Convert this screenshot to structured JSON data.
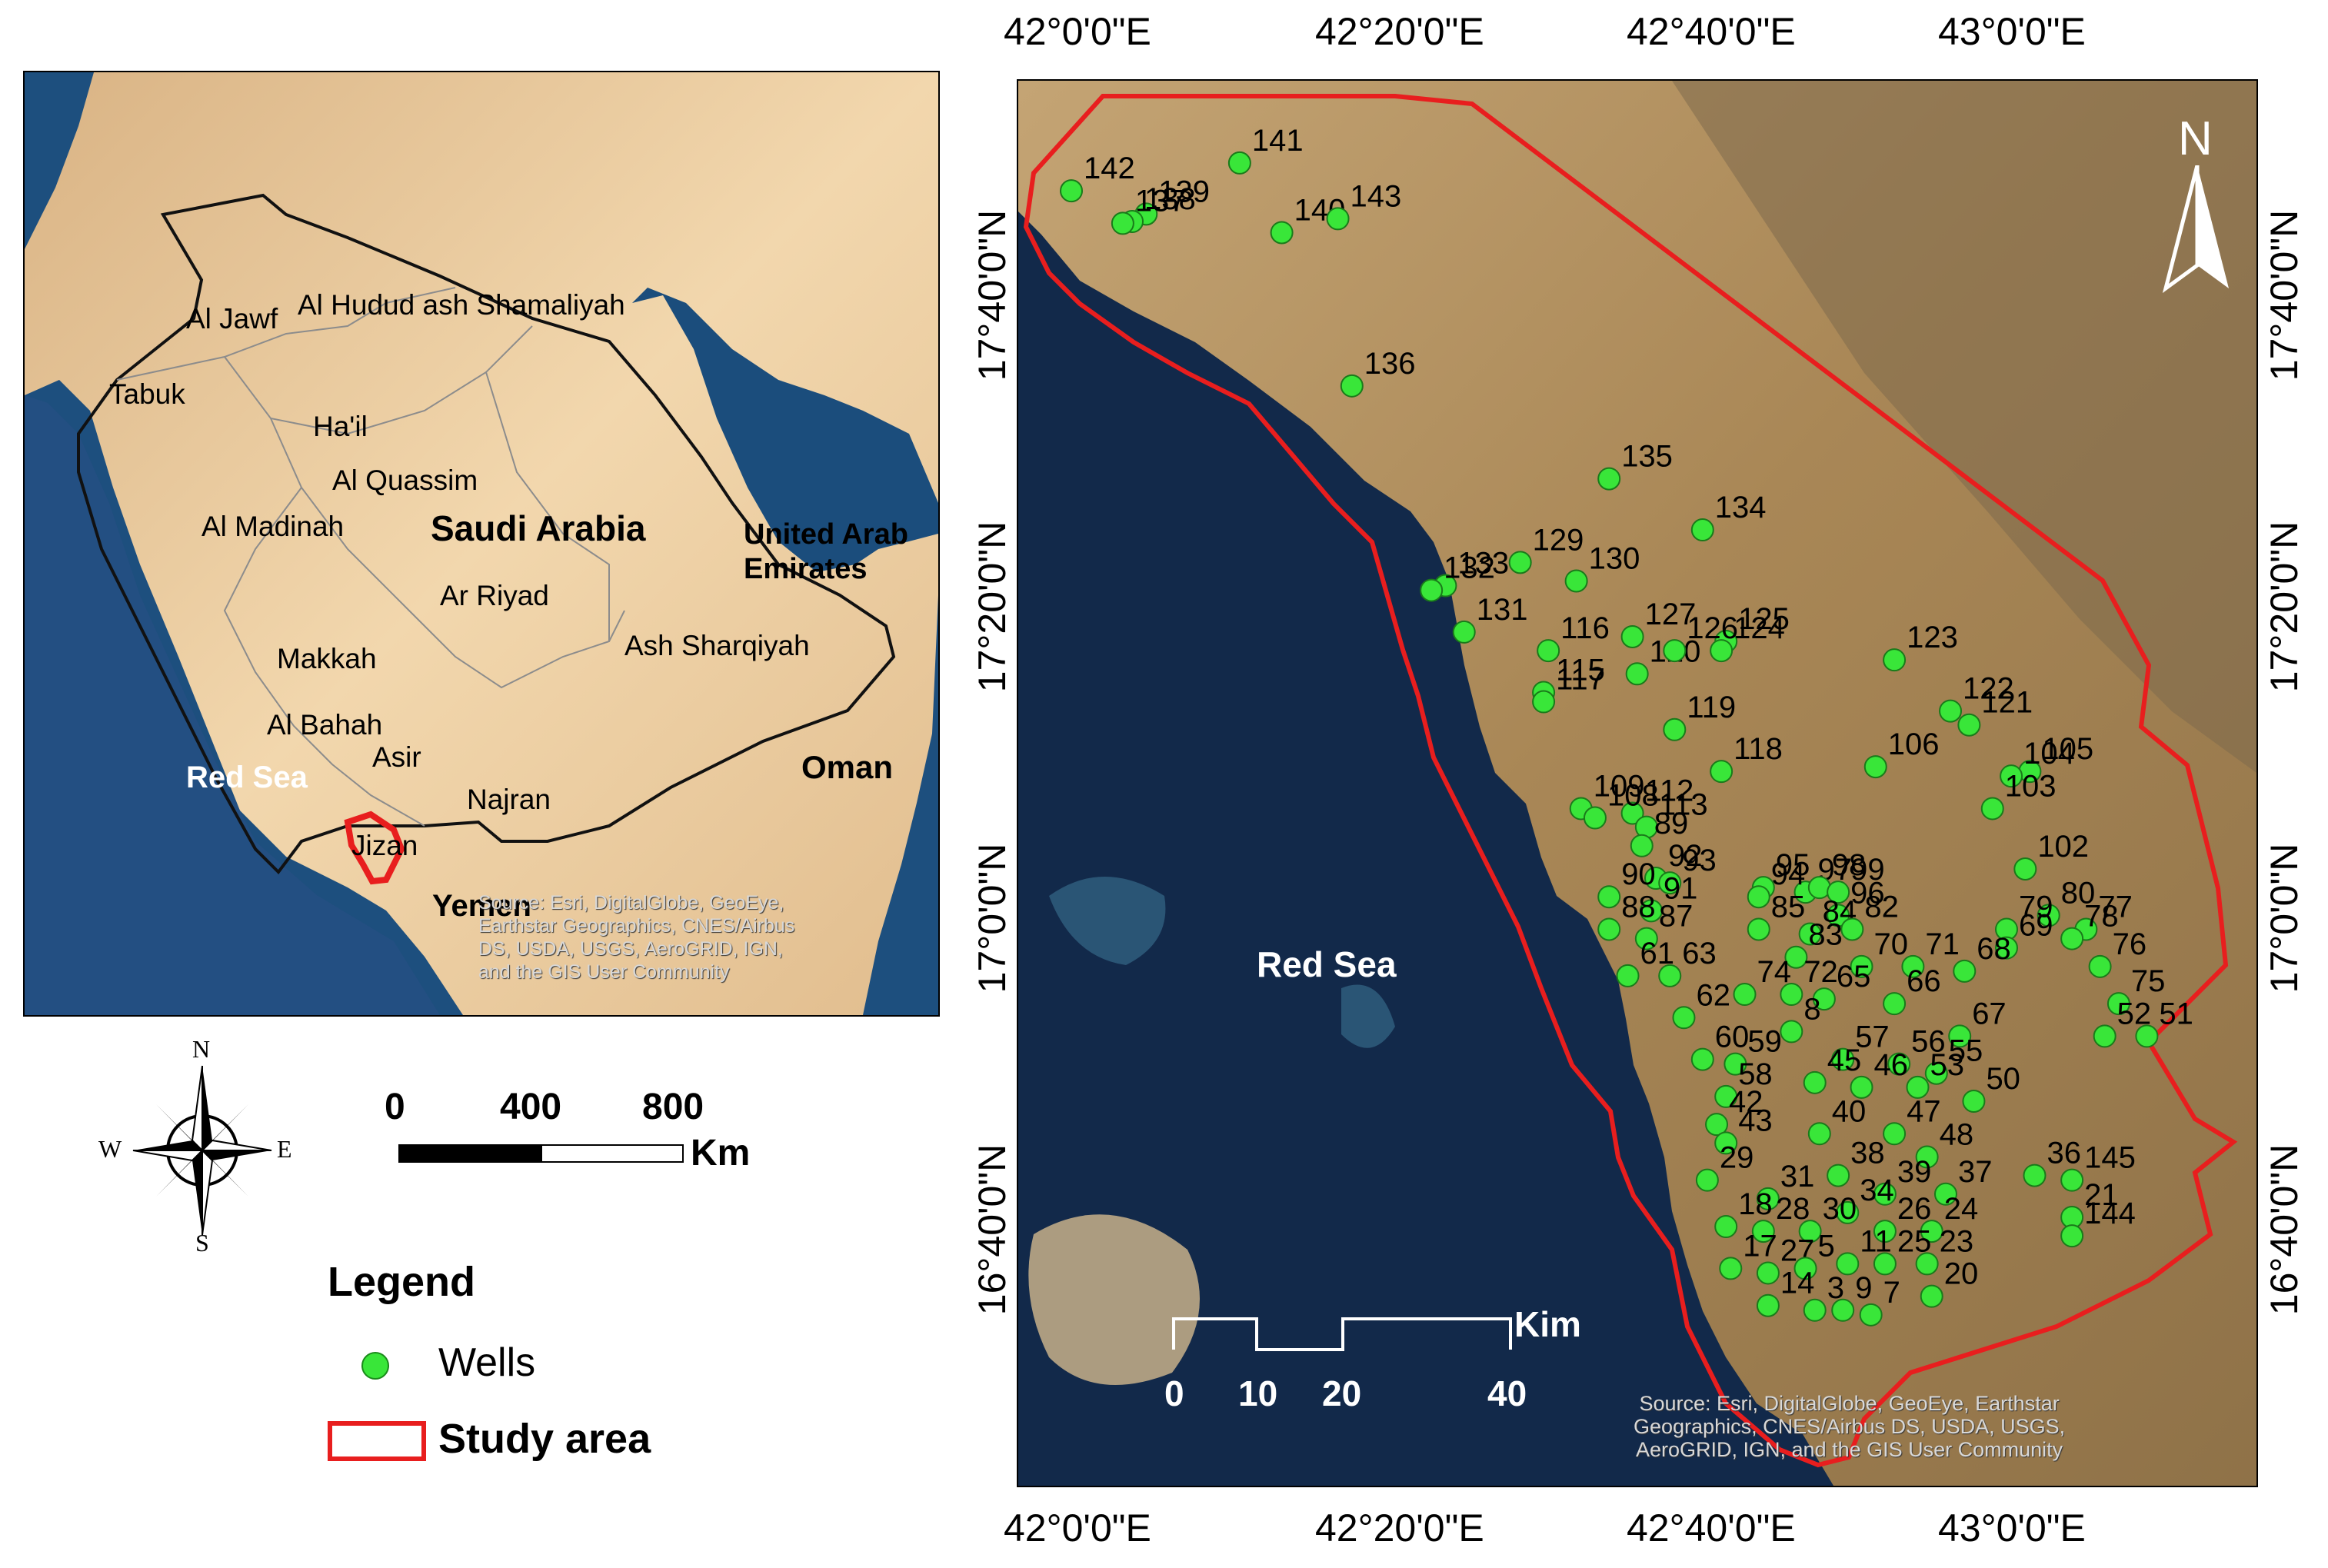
{
  "inset_map": {
    "country_label": "Saudi Arabia",
    "sea_label": "Red Sea",
    "neighbors": [
      "United Arab",
      "Emirates",
      "Oman",
      "Yemen"
    ],
    "regions": [
      "Al Jawf",
      "Al Hudud ash Shamaliyah",
      "Tabuk",
      "Ha'il",
      "Al Quassim",
      "Al Madinah",
      "Ar Riyad",
      "Makkah",
      "Ash Sharqiyah",
      "Al Bahah",
      "Asir",
      "Najran",
      "Jizan"
    ],
    "source_lines": [
      "Source: Esri, DigitalGlobe, GeoEye,",
      "Earthstar Geographics, CNES/Airbus",
      "DS, USDA, USGS, AeroGRID, IGN,",
      "and the GIS User Community"
    ],
    "colors": {
      "water": "#1d4f7e",
      "land": "#e6c08f",
      "boundary": "#111111",
      "study_area": "#e81e1e"
    }
  },
  "compass_rose": {
    "n": "N",
    "s": "S",
    "e": "E",
    "w": "W"
  },
  "scale_bar_inset": {
    "ticks": [
      "0",
      "400",
      "800"
    ],
    "unit": "Km"
  },
  "legend": {
    "title": "Legend",
    "items": [
      {
        "label": "Wells",
        "symbol": "green-circle",
        "color": "#39e639"
      },
      {
        "label": "Study area",
        "symbol": "red-outline-rectangle",
        "color": "#e81e1e"
      }
    ]
  },
  "main_map": {
    "x_ticks": [
      "42°0'0\"E",
      "42°20'0\"E",
      "42°40'0\"E",
      "43°0'0\"E"
    ],
    "y_ticks": [
      "17°40'0\"N",
      "17°20'0\"N",
      "17°0'0\"N",
      "16°40'0\"N"
    ],
    "sea_label": "Red Sea",
    "north_arrow": "N",
    "scale_bar": {
      "ticks": [
        "0",
        "10",
        "20",
        "40"
      ],
      "unit": "Kim"
    },
    "source_lines": [
      "Source: Esri, DigitalGlobe, GeoEye, Earthstar",
      "Geographics, CNES/Airbus DS, USDA, USGS,",
      "AeroGRID, IGN, and the GIS User Community"
    ],
    "colors": {
      "sea": "#102540",
      "land": "#a58658",
      "boundary": "#e81e1e",
      "well": "#39e639"
    }
  },
  "wells": [
    {
      "id": "142",
      "lon": 42.0,
      "lat": 17.78
    },
    {
      "id": "141",
      "lon": 42.18,
      "lat": 17.81
    },
    {
      "id": "139",
      "lon": 42.08,
      "lat": 17.755
    },
    {
      "id": "138",
      "lon": 42.065,
      "lat": 17.747
    },
    {
      "id": "137",
      "lon": 42.055,
      "lat": 17.745
    },
    {
      "id": "140",
      "lon": 42.225,
      "lat": 17.735
    },
    {
      "id": "143",
      "lon": 42.285,
      "lat": 17.75
    },
    {
      "id": "136",
      "lon": 42.3,
      "lat": 17.57
    },
    {
      "id": "135",
      "lon": 42.575,
      "lat": 17.47
    },
    {
      "id": "134",
      "lon": 42.675,
      "lat": 17.415
    },
    {
      "id": "133",
      "lon": 42.4,
      "lat": 17.355
    },
    {
      "id": "132",
      "lon": 42.385,
      "lat": 17.35
    },
    {
      "id": "129",
      "lon": 42.48,
      "lat": 17.38
    },
    {
      "id": "131",
      "lon": 42.42,
      "lat": 17.305
    },
    {
      "id": "130",
      "lon": 42.54,
      "lat": 17.36
    },
    {
      "id": "116",
      "lon": 42.51,
      "lat": 17.285
    },
    {
      "id": "127",
      "lon": 42.6,
      "lat": 17.3
    },
    {
      "id": "125",
      "lon": 42.7,
      "lat": 17.295
    },
    {
      "id": "120",
      "lon": 42.605,
      "lat": 17.26
    },
    {
      "id": "126",
      "lon": 42.645,
      "lat": 17.285
    },
    {
      "id": "124",
      "lon": 42.695,
      "lat": 17.285
    },
    {
      "id": "123",
      "lon": 42.88,
      "lat": 17.275
    },
    {
      "id": "115",
      "lon": 42.505,
      "lat": 17.24
    },
    {
      "id": "117",
      "lon": 42.505,
      "lat": 17.23
    },
    {
      "id": "119",
      "lon": 42.645,
      "lat": 17.2
    },
    {
      "id": "122",
      "lon": 42.94,
      "lat": 17.22
    },
    {
      "id": "121",
      "lon": 42.96,
      "lat": 17.205
    },
    {
      "id": "118",
      "lon": 42.695,
      "lat": 17.155
    },
    {
      "id": "106",
      "lon": 42.86,
      "lat": 17.16
    },
    {
      "id": "105",
      "lon": 43.025,
      "lat": 17.155
    },
    {
      "id": "104",
      "lon": 43.005,
      "lat": 17.15
    },
    {
      "id": "103",
      "lon": 42.985,
      "lat": 17.115
    },
    {
      "id": "109",
      "lon": 42.545,
      "lat": 17.115
    },
    {
      "id": "112",
      "lon": 42.6,
      "lat": 17.11
    },
    {
      "id": "113",
      "lon": 42.615,
      "lat": 17.095
    },
    {
      "id": "108",
      "lon": 42.56,
      "lat": 17.105
    },
    {
      "id": "89",
      "lon": 42.61,
      "lat": 17.075
    },
    {
      "id": "92",
      "lon": 42.625,
      "lat": 17.04
    },
    {
      "id": "93",
      "lon": 42.64,
      "lat": 17.035
    },
    {
      "id": "102",
      "lon": 43.02,
      "lat": 17.05
    },
    {
      "id": "95",
      "lon": 42.74,
      "lat": 17.03
    },
    {
      "id": "97",
      "lon": 42.785,
      "lat": 17.025
    },
    {
      "id": "98",
      "lon": 42.8,
      "lat": 17.03
    },
    {
      "id": "99",
      "lon": 42.82,
      "lat": 17.025
    },
    {
      "id": "90",
      "lon": 42.575,
      "lat": 17.02
    },
    {
      "id": "91",
      "lon": 42.62,
      "lat": 17.005
    },
    {
      "id": "94",
      "lon": 42.735,
      "lat": 17.02
    },
    {
      "id": "96",
      "lon": 42.82,
      "lat": 17.0
    },
    {
      "id": "80",
      "lon": 43.045,
      "lat": 17.0
    },
    {
      "id": "77",
      "lon": 43.085,
      "lat": 16.985
    },
    {
      "id": "88",
      "lon": 42.575,
      "lat": 16.985
    },
    {
      "id": "87",
      "lon": 42.615,
      "lat": 16.975
    },
    {
      "id": "85",
      "lon": 42.735,
      "lat": 16.985
    },
    {
      "id": "84",
      "lon": 42.79,
      "lat": 16.98
    },
    {
      "id": "82",
      "lon": 42.835,
      "lat": 16.985
    },
    {
      "id": "79",
      "lon": 43.0,
      "lat": 16.985
    },
    {
      "id": "78",
      "lon": 43.07,
      "lat": 16.975
    },
    {
      "id": "69",
      "lon": 43.0,
      "lat": 16.965
    },
    {
      "id": "76",
      "lon": 43.1,
      "lat": 16.945
    },
    {
      "id": "83",
      "lon": 42.775,
      "lat": 16.955
    },
    {
      "id": "70",
      "lon": 42.845,
      "lat": 16.945
    },
    {
      "id": "71",
      "lon": 42.9,
      "lat": 16.945
    },
    {
      "id": "68",
      "lon": 42.955,
      "lat": 16.94
    },
    {
      "id": "61",
      "lon": 42.595,
      "lat": 16.935
    },
    {
      "id": "63",
      "lon": 42.64,
      "lat": 16.935
    },
    {
      "id": "75",
      "lon": 43.12,
      "lat": 16.905
    },
    {
      "id": "74",
      "lon": 42.72,
      "lat": 16.915
    },
    {
      "id": "72",
      "lon": 42.77,
      "lat": 16.915
    },
    {
      "id": "65",
      "lon": 42.805,
      "lat": 16.91
    },
    {
      "id": "66",
      "lon": 42.88,
      "lat": 16.905
    },
    {
      "id": "62",
      "lon": 42.655,
      "lat": 16.89
    },
    {
      "id": "8",
      "lon": 42.77,
      "lat": 16.875
    },
    {
      "id": "67",
      "lon": 42.95,
      "lat": 16.87
    },
    {
      "id": "52",
      "lon": 43.105,
      "lat": 16.87
    },
    {
      "id": "51",
      "lon": 43.15,
      "lat": 16.87
    },
    {
      "id": "60",
      "lon": 42.675,
      "lat": 16.845
    },
    {
      "id": "59",
      "lon": 42.71,
      "lat": 16.84
    },
    {
      "id": "57",
      "lon": 42.825,
      "lat": 16.845
    },
    {
      "id": "56",
      "lon": 42.885,
      "lat": 16.84
    },
    {
      "id": "55",
      "lon": 42.925,
      "lat": 16.83
    },
    {
      "id": "45",
      "lon": 42.795,
      "lat": 16.82
    },
    {
      "id": "46",
      "lon": 42.845,
      "lat": 16.815
    },
    {
      "id": "53",
      "lon": 42.905,
      "lat": 16.815
    },
    {
      "id": "50",
      "lon": 42.965,
      "lat": 16.8
    },
    {
      "id": "58",
      "lon": 42.7,
      "lat": 16.805
    },
    {
      "id": "42",
      "lon": 42.69,
      "lat": 16.775
    },
    {
      "id": "40",
      "lon": 42.8,
      "lat": 16.765
    },
    {
      "id": "47",
      "lon": 42.88,
      "lat": 16.765
    },
    {
      "id": "43",
      "lon": 42.7,
      "lat": 16.755
    },
    {
      "id": "48",
      "lon": 42.915,
      "lat": 16.74
    },
    {
      "id": "36",
      "lon": 43.03,
      "lat": 16.72
    },
    {
      "id": "145",
      "lon": 43.07,
      "lat": 16.715
    },
    {
      "id": "29",
      "lon": 42.68,
      "lat": 16.715
    },
    {
      "id": "38",
      "lon": 42.82,
      "lat": 16.72
    },
    {
      "id": "31",
      "lon": 42.745,
      "lat": 16.695
    },
    {
      "id": "39",
      "lon": 42.87,
      "lat": 16.7
    },
    {
      "id": "37",
      "lon": 42.935,
      "lat": 16.7
    },
    {
      "id": "34",
      "lon": 42.83,
      "lat": 16.68
    },
    {
      "id": "21",
      "lon": 43.07,
      "lat": 16.675
    },
    {
      "id": "18",
      "lon": 42.7,
      "lat": 16.665
    },
    {
      "id": "28",
      "lon": 42.74,
      "lat": 16.66
    },
    {
      "id": "30",
      "lon": 42.79,
      "lat": 16.66
    },
    {
      "id": "26",
      "lon": 42.87,
      "lat": 16.66
    },
    {
      "id": "24",
      "lon": 42.92,
      "lat": 16.66
    },
    {
      "id": "144",
      "lon": 43.07,
      "lat": 16.655
    },
    {
      "id": "17",
      "lon": 42.705,
      "lat": 16.62
    },
    {
      "id": "27",
      "lon": 42.745,
      "lat": 16.615
    },
    {
      "id": "5",
      "lon": 42.785,
      "lat": 16.62
    },
    {
      "id": "11",
      "lon": 42.83,
      "lat": 16.625
    },
    {
      "id": "25",
      "lon": 42.87,
      "lat": 16.625
    },
    {
      "id": "23",
      "lon": 42.915,
      "lat": 16.625
    },
    {
      "id": "20",
      "lon": 42.92,
      "lat": 16.59
    },
    {
      "id": "14",
      "lon": 42.745,
      "lat": 16.58
    },
    {
      "id": "3",
      "lon": 42.795,
      "lat": 16.575
    },
    {
      "id": "9",
      "lon": 42.825,
      "lat": 16.575
    },
    {
      "id": "7",
      "lon": 42.855,
      "lat": 16.57
    }
  ]
}
